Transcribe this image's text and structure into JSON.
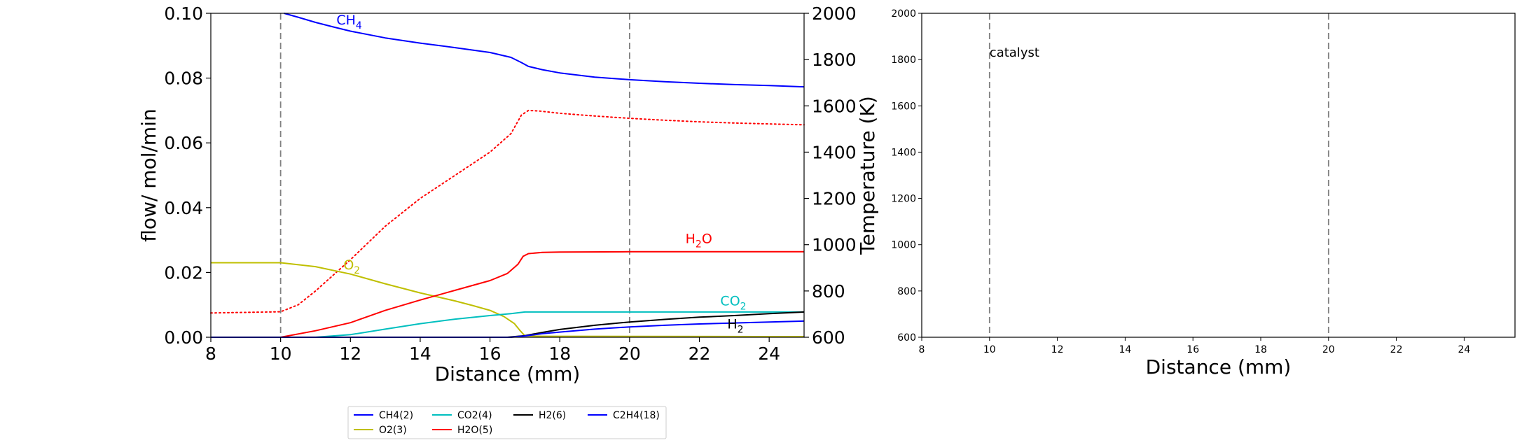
{
  "chart_data": [
    {
      "type": "line",
      "xlabel": "Distance (mm)",
      "ylabel": "flow/ mol/min",
      "y2label": "Temperature (K)",
      "xlim": [
        8,
        25
      ],
      "ylim": [
        0,
        0.1
      ],
      "y2lim": [
        600,
        2000
      ],
      "xticks": [
        "8",
        "10",
        "12",
        "14",
        "16",
        "18",
        "20",
        "22",
        "24"
      ],
      "yticks": [
        "0.00",
        "0.02",
        "0.04",
        "0.06",
        "0.08",
        "0.10"
      ],
      "y2ticks": [
        "600",
        "800",
        "1000",
        "1200",
        "1400",
        "1600",
        "1800",
        "2000"
      ],
      "vlines": [
        10,
        20
      ],
      "grid": false,
      "series": [
        {
          "name": "CH4(2)",
          "color": "#0000ff",
          "x": [
            10.1,
            10.5,
            11,
            11.5,
            12,
            13,
            14,
            15,
            16,
            16.6,
            16.9,
            17.1,
            17.5,
            18,
            19,
            20,
            21,
            22,
            23,
            24,
            25
          ],
          "y": [
            0.1,
            0.0988,
            0.0972,
            0.0958,
            0.0945,
            0.0924,
            0.0908,
            0.0894,
            0.0879,
            0.0864,
            0.0848,
            0.0836,
            0.0826,
            0.0816,
            0.0803,
            0.0795,
            0.0789,
            0.0784,
            0.078,
            0.0777,
            0.0773
          ]
        },
        {
          "name": "O2(3)",
          "color": "#bfbf00",
          "x": [
            8,
            10,
            11,
            12,
            13,
            14,
            15,
            15.5,
            16,
            16.4,
            16.7,
            16.85,
            17,
            17.5,
            25
          ],
          "y": [
            0.023,
            0.023,
            0.0218,
            0.0195,
            0.0165,
            0.0137,
            0.0112,
            0.0098,
            0.0083,
            0.0064,
            0.0042,
            0.0022,
            0.0004,
            0.0003,
            0.0002
          ]
        },
        {
          "name": "CO2(4)",
          "color": "#00bfbf",
          "x": [
            8,
            11,
            12,
            13,
            14,
            15,
            16,
            16.6,
            17,
            18,
            25
          ],
          "y": [
            0,
            0,
            0.0008,
            0.0025,
            0.0042,
            0.0056,
            0.0067,
            0.0073,
            0.0078,
            0.0078,
            0.0078
          ]
        },
        {
          "name": "H2O(5)",
          "color": "#ff0000",
          "x": [
            8,
            10,
            11,
            12,
            13,
            14,
            15,
            16,
            16.5,
            16.8,
            16.95,
            17.1,
            17.5,
            18,
            20,
            25
          ],
          "y": [
            0,
            0,
            0.002,
            0.0045,
            0.0083,
            0.0115,
            0.0145,
            0.0175,
            0.0197,
            0.0225,
            0.025,
            0.0258,
            0.0262,
            0.0263,
            0.0264,
            0.0264
          ]
        },
        {
          "name": "H2(6)",
          "color": "#000000",
          "x": [
            8,
            16.5,
            17,
            17.5,
            18,
            19,
            20,
            21,
            22,
            23,
            24,
            25
          ],
          "y": [
            0,
            0,
            0.0005,
            0.0015,
            0.0024,
            0.0037,
            0.0047,
            0.0055,
            0.0062,
            0.0067,
            0.0073,
            0.0078
          ]
        },
        {
          "name": "C2H4(18)",
          "color": "#0000ff",
          "x": [
            8,
            16.6,
            17,
            17.5,
            18,
            19,
            20,
            21,
            22,
            23,
            24,
            25
          ],
          "y": [
            0,
            0,
            0.0004,
            0.0011,
            0.0016,
            0.0025,
            0.0032,
            0.0037,
            0.0041,
            0.0044,
            0.0047,
            0.005
          ]
        }
      ],
      "temperature": {
        "color": "#ff0000",
        "style": "dotted",
        "x": [
          8,
          10,
          10.5,
          11,
          12,
          13,
          14,
          15,
          16,
          16.6,
          16.9,
          17.1,
          17.4,
          18,
          19,
          20,
          21,
          22,
          23,
          24,
          25
        ],
        "y": [
          705,
          710,
          740,
          800,
          935,
          1080,
          1200,
          1300,
          1400,
          1480,
          1560,
          1580,
          1578,
          1568,
          1556,
          1546,
          1538,
          1531,
          1526,
          1522,
          1518
        ]
      },
      "annotations": [
        {
          "base": "CH",
          "sub": "4",
          "x": 11.6,
          "y": 0.0965,
          "color": "#0000ff"
        },
        {
          "base": "O",
          "sub": "2",
          "x": 11.8,
          "y": 0.021,
          "color": "#bfbf00"
        },
        {
          "base": "H",
          "sub": "2",
          "mid": "",
          "tail": "O",
          "x": 21.6,
          "y": 0.029,
          "color": "#ff0000"
        },
        {
          "base": "CO",
          "sub": "2",
          "x": 22.6,
          "y": 0.0098,
          "color": "#00bfbf"
        },
        {
          "base": "H",
          "sub": "2",
          "x": 22.8,
          "y": 0.0027,
          "color": "#000000"
        }
      ],
      "legend": {
        "placement": "below",
        "columns": [
          [
            "CH4(2)",
            "O2(3)"
          ],
          [
            "CO2(4)",
            "H2O(5)"
          ],
          [
            "H2(6)"
          ],
          [
            "C2H4(18)"
          ]
        ]
      }
    },
    {
      "type": "line",
      "xlabel": "Distance (mm)",
      "xlim": [
        8,
        25.5
      ],
      "ylim": [
        600,
        2000
      ],
      "xticks": [
        "8",
        "10",
        "12",
        "14",
        "16",
        "18",
        "20",
        "22",
        "24"
      ],
      "yticks": [
        "600",
        "800",
        "1000",
        "1200",
        "1400",
        "1600",
        "1800",
        "2000"
      ],
      "vlines": [
        10,
        20
      ],
      "grid": false,
      "annotations": [
        {
          "text": "catalyst",
          "x": 10,
          "y": 1830,
          "color": "#000000"
        }
      ],
      "series": []
    }
  ]
}
